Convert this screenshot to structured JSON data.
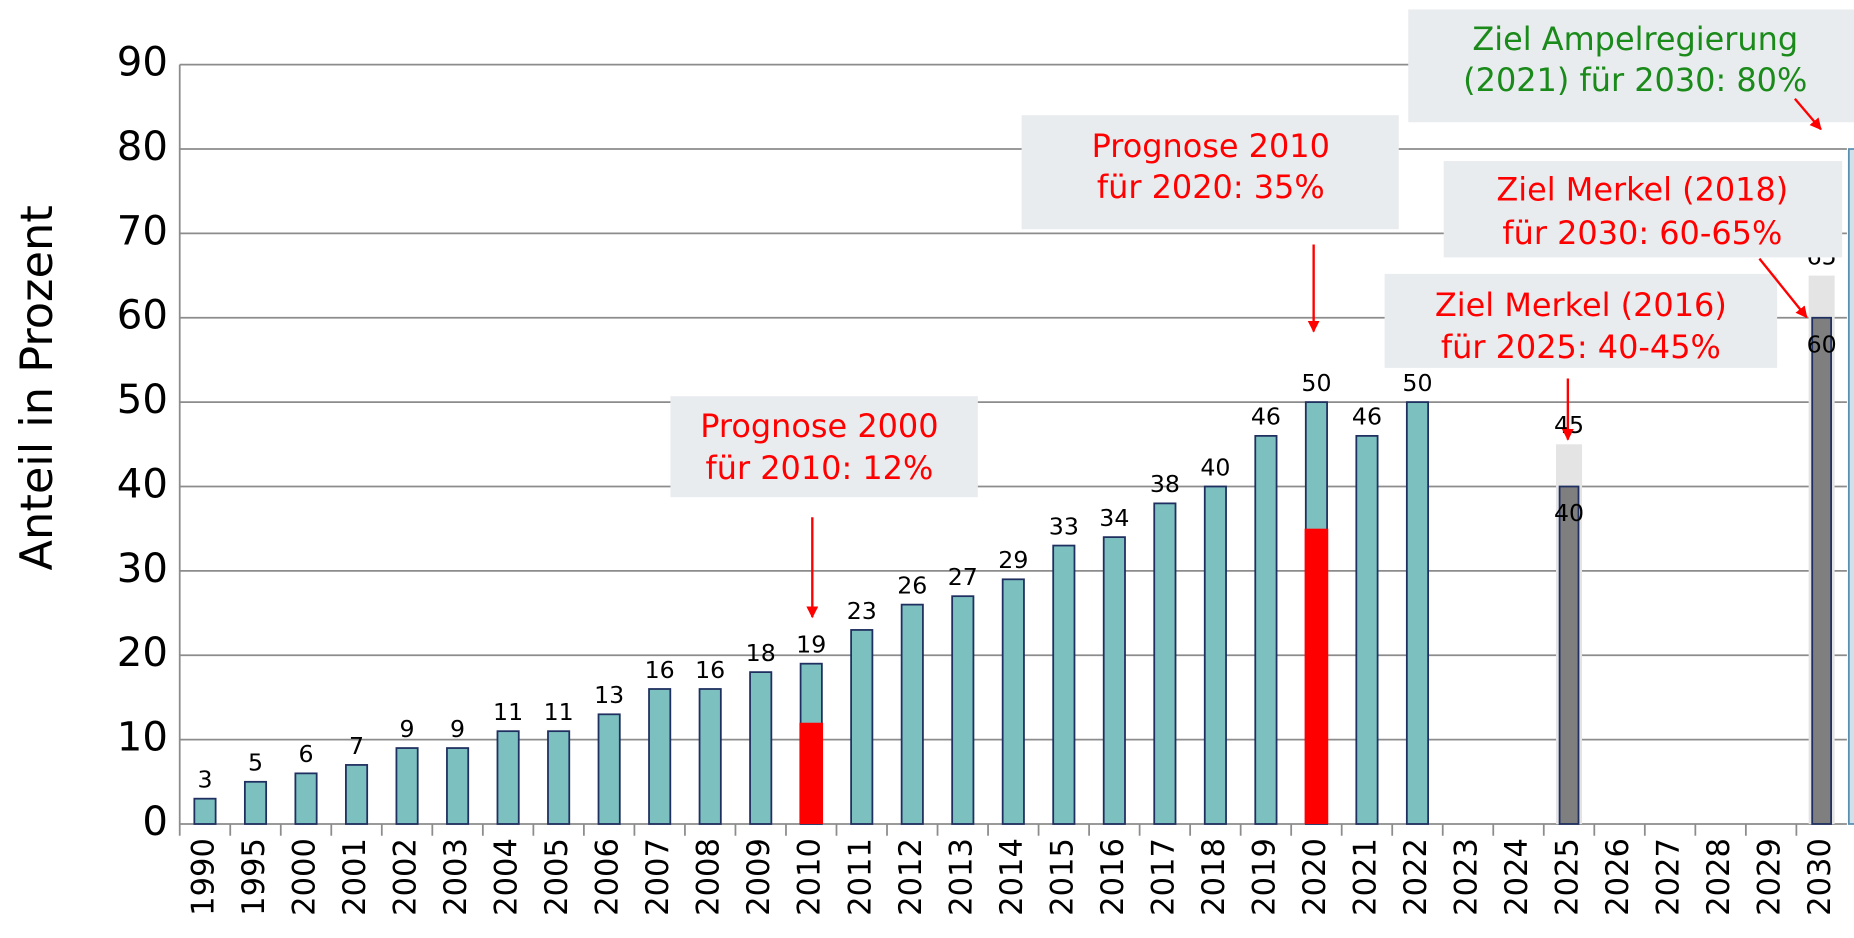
{
  "chart_data": {
    "type": "bar",
    "ylabel": "Anteil in Prozent",
    "categories": [
      "1990",
      "1995",
      "2000",
      "2001",
      "2002",
      "2003",
      "2004",
      "2005",
      "2006",
      "2007",
      "2008",
      "2009",
      "2010",
      "2011",
      "2012",
      "2013",
      "2014",
      "2015",
      "2016",
      "2017",
      "2018",
      "2019",
      "2020",
      "2021",
      "2022",
      "2023",
      "2024",
      "2025",
      "2026",
      "2027",
      "2028",
      "2029",
      "2030"
    ],
    "ylim": [
      0,
      90
    ],
    "yticks": [
      0,
      10,
      20,
      30,
      40,
      50,
      60,
      70,
      80,
      90
    ],
    "grid": true,
    "series": [
      {
        "color": "#7cc0c0",
        "labels": "above",
        "values": [
          3,
          5,
          6,
          7,
          9,
          9,
          11,
          11,
          13,
          16,
          16,
          18,
          19,
          23,
          26,
          27,
          29,
          33,
          34,
          38,
          40,
          46,
          50,
          46,
          50,
          null,
          null,
          null,
          null,
          null,
          null,
          null,
          null
        ]
      },
      {
        "color": "#e4e4e4",
        "labels": "above",
        "values": [
          null,
          null,
          null,
          null,
          null,
          null,
          null,
          null,
          null,
          null,
          null,
          null,
          null,
          null,
          null,
          null,
          null,
          null,
          null,
          null,
          null,
          null,
          null,
          null,
          null,
          null,
          null,
          45,
          null,
          null,
          null,
          null,
          65
        ]
      },
      {
        "color": "#7f7f7f",
        "labels": "inside",
        "values": [
          null,
          null,
          null,
          null,
          null,
          null,
          null,
          null,
          null,
          null,
          null,
          null,
          null,
          null,
          null,
          null,
          null,
          null,
          null,
          null,
          null,
          null,
          null,
          null,
          null,
          null,
          null,
          40,
          null,
          null,
          null,
          null,
          60
        ]
      },
      {
        "color": "#ff0000",
        "values": [
          null,
          null,
          null,
          null,
          null,
          null,
          null,
          null,
          null,
          null,
          null,
          null,
          12,
          null,
          null,
          null,
          null,
          null,
          null,
          null,
          null,
          null,
          35,
          null,
          null,
          null,
          null,
          null,
          null,
          null,
          null,
          null,
          null
        ]
      },
      {
        "color": "#cfe2ec",
        "values": [
          null,
          null,
          null,
          null,
          null,
          null,
          null,
          null,
          null,
          null,
          null,
          null,
          null,
          null,
          null,
          null,
          null,
          null,
          null,
          null,
          null,
          null,
          null,
          null,
          null,
          null,
          null,
          null,
          null,
          null,
          null,
          null,
          80
        ]
      }
    ],
    "annotations": [
      {
        "lines": [
          "Prognose 2000",
          "für 2010: 12%"
        ],
        "color": "#ff0000"
      },
      {
        "lines": [
          "Prognose 2010",
          "für 2020: 35%"
        ],
        "color": "#ff0000"
      },
      {
        "lines": [
          "Ziel Merkel (2016)",
          "für 2025: 40-45%"
        ],
        "color": "#ff0000"
      },
      {
        "lines": [
          "Ziel Merkel (2018)",
          "für 2030: 60-65%"
        ],
        "color": "#ff0000"
      },
      {
        "lines": [
          "Ziel Ampelregierung",
          "(2021) für 2030: 80%"
        ],
        "color": "#1a8a1a"
      }
    ]
  }
}
